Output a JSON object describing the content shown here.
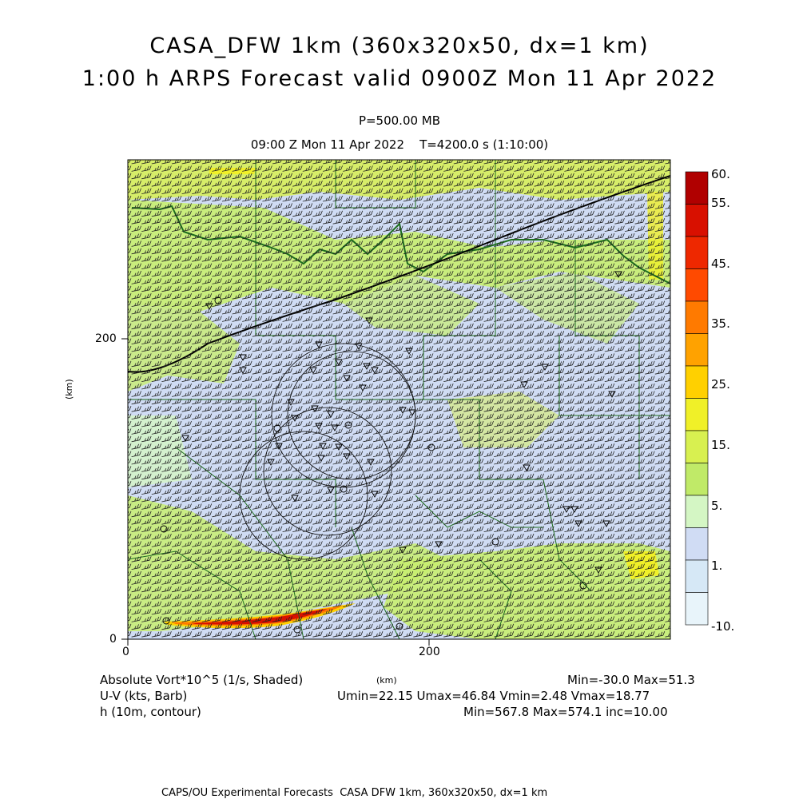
{
  "header": {
    "title_line1": "CASA_DFW 1km (360x320x50, dx=1 km)",
    "title_line2": "1:00 h ARPS Forecast valid 0900Z Mon 11 Apr 2022",
    "level": "P=500.00 MB",
    "valid_time": "09:00 Z Mon 11 Apr 2022    T=4200.0 s (1:10:00)"
  },
  "axes": {
    "x_ticks": [
      "0",
      "200"
    ],
    "y_ticks": [
      "0",
      "200"
    ],
    "x_label": "(km)",
    "y_label": "(km)"
  },
  "colorbar": {
    "labels": [
      "60.",
      "55.",
      "45.",
      "35.",
      "25.",
      "15.",
      "5.",
      "1.",
      "-10."
    ],
    "colors": [
      "#b00000",
      "#d81000",
      "#ee2800",
      "#ff4a00",
      "#ff7a00",
      "#ffa200",
      "#ffd000",
      "#f0f028",
      "#d8f050",
      "#c0ea68",
      "#d4f6c4",
      "#d0dcf4",
      "#d6e8f6",
      "#e8f4fa"
    ]
  },
  "legend": {
    "field1": "Absolute Vort*10^5 (1/s, Shaded)",
    "field1_stats": "Min=-30.0 Max=51.3",
    "field2": "U-V (kts, Barb)",
    "field2_stats": "Umin=22.15 Umax=46.84 Vmin=2.48 Vmax=18.77",
    "field3": "h (10m, contour)",
    "field3_stats": "Min=567.8 Max=574.1 inc=10.00"
  },
  "footer": "CAPS/OU Experimental Forecasts  CASA DFW 1km, 360x320x50, dx=1 km"
}
